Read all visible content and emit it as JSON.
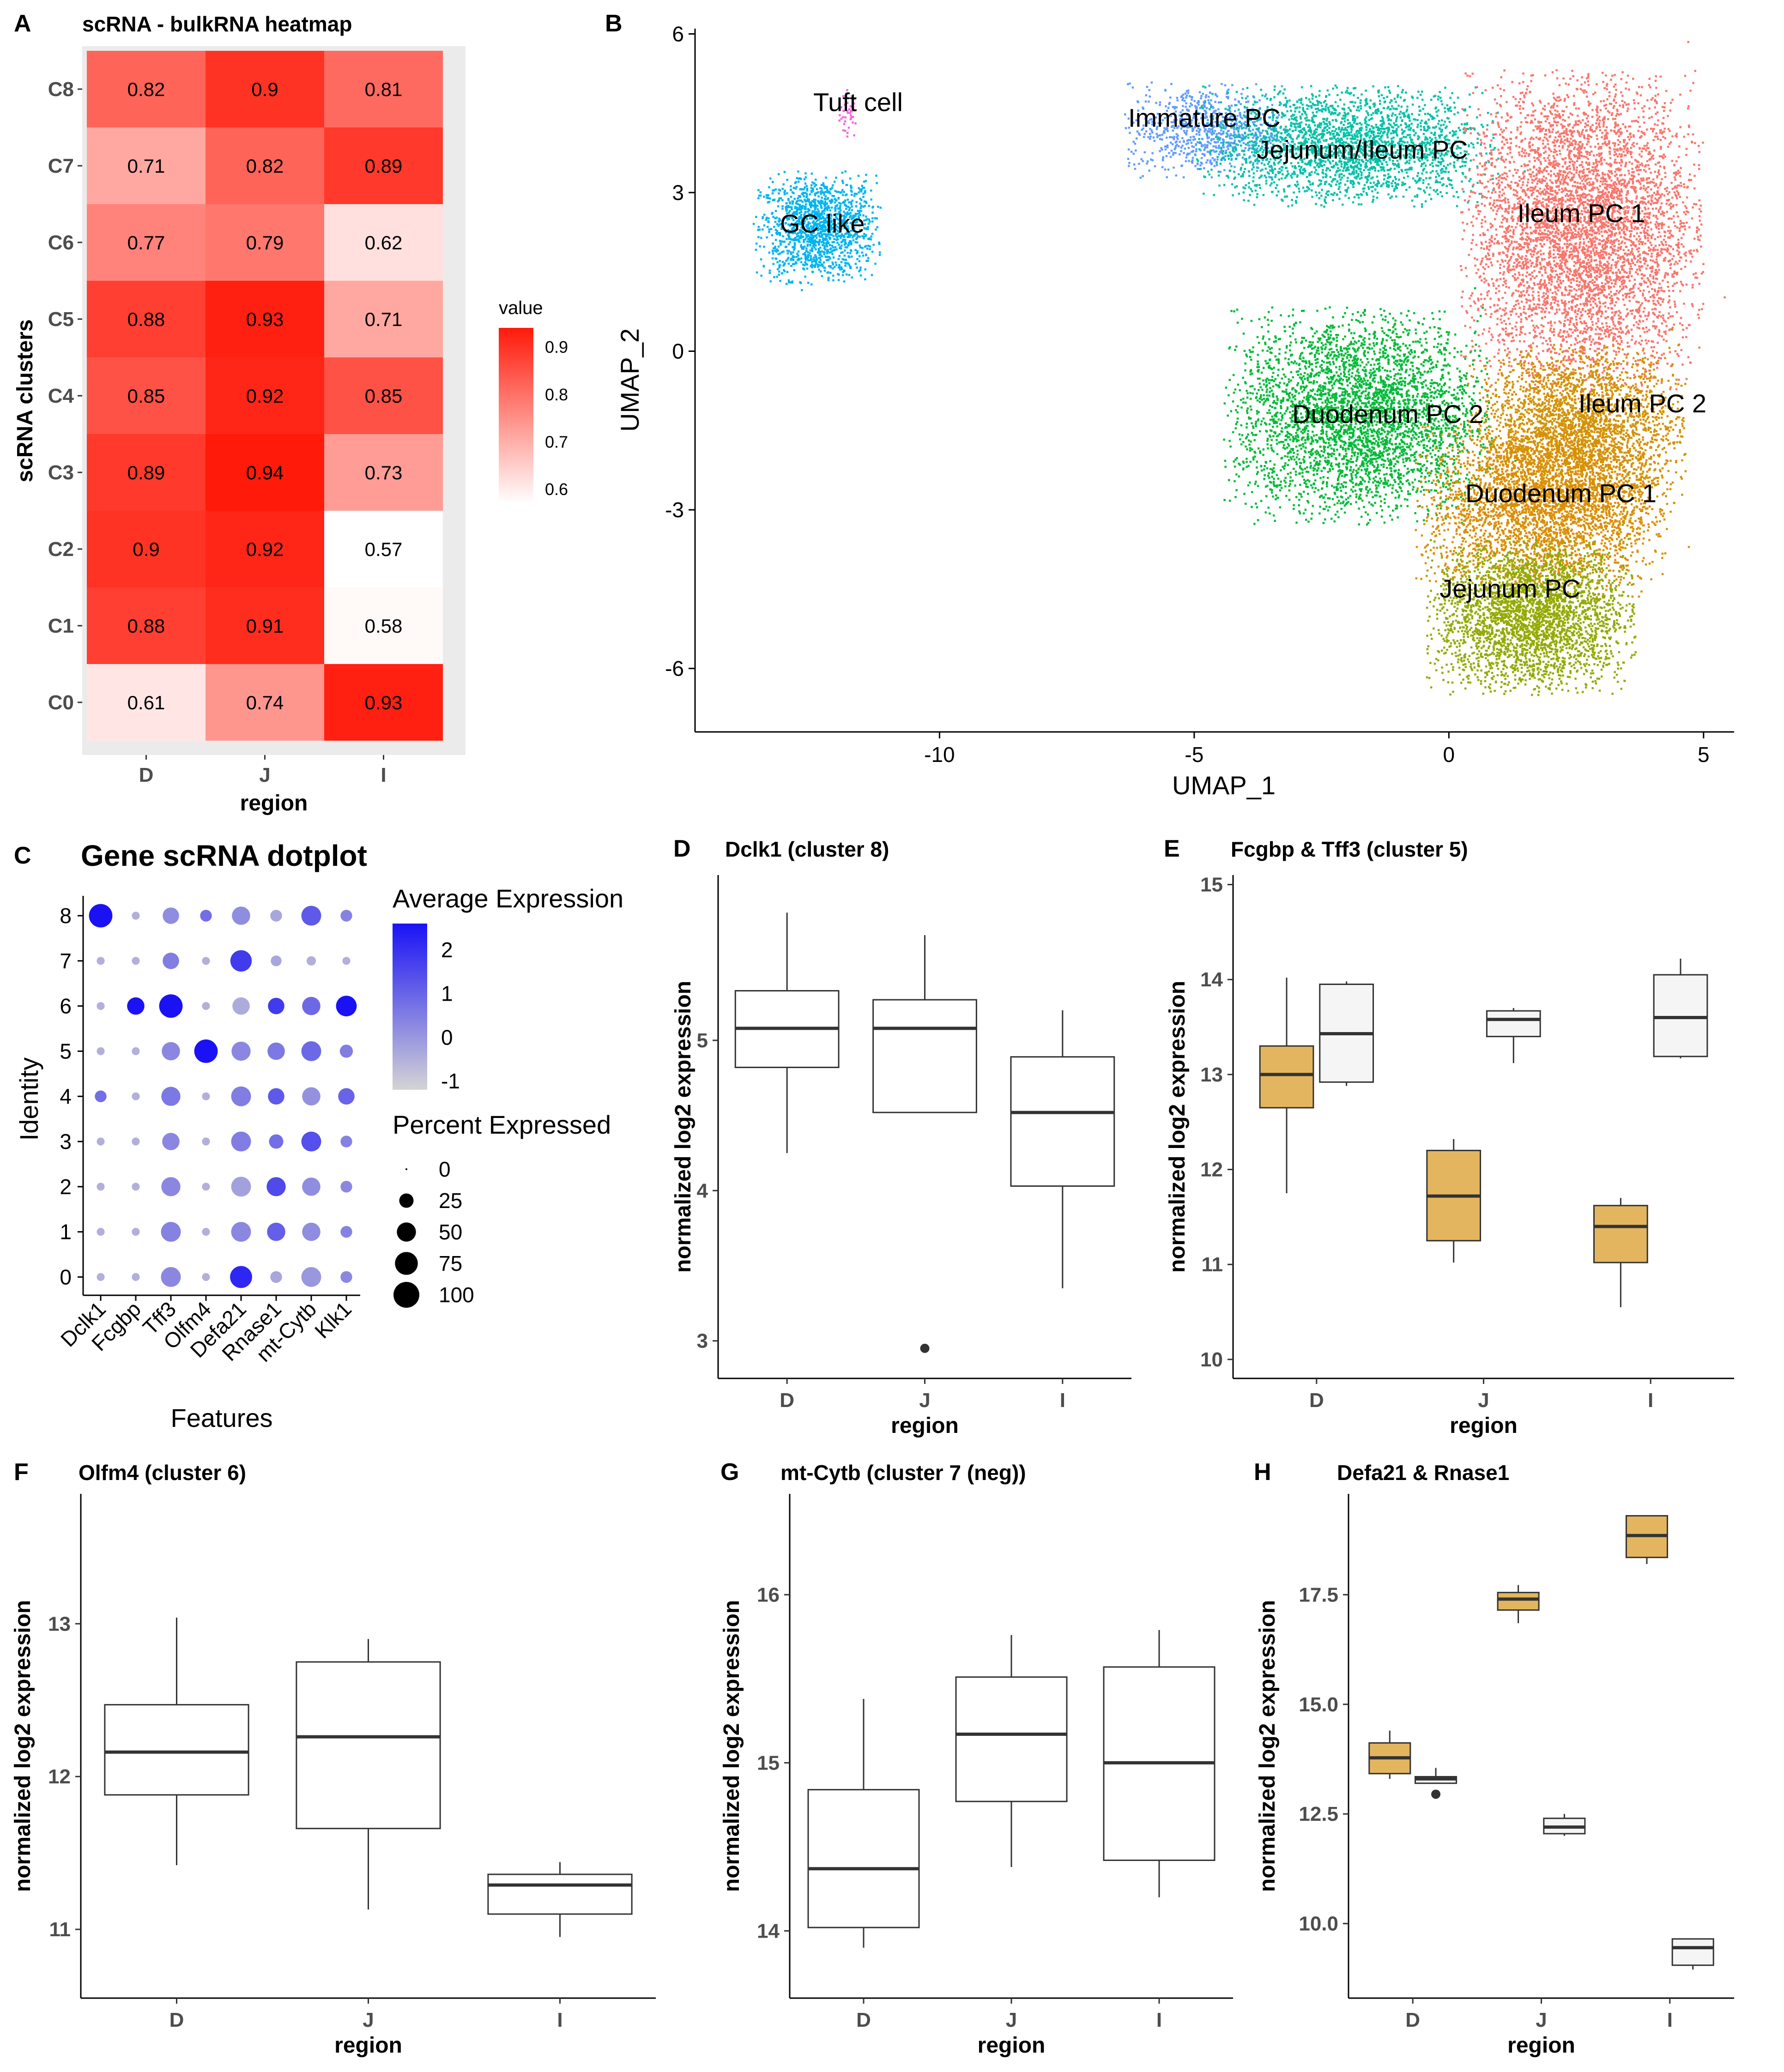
{
  "panels": {
    "A": "A",
    "B": "B",
    "C": "C",
    "D": "D",
    "E": "E",
    "F": "F",
    "G": "G",
    "H": "H"
  },
  "colors": {
    "box_fill_a": "#e3b55e",
    "box_fill_b": "#f5f5f5",
    "heat_low": "#ffffff",
    "heat_high": "#ff1a0a",
    "dot_low": "#d4d4d4",
    "dot_high": "#1a12f5"
  },
  "chart_data": [
    {
      "id": "A",
      "type": "heatmap",
      "title": "scRNA - bulkRNA heatmap",
      "xlabel": "region",
      "ylabel": "scRNA clusters",
      "x": [
        "D",
        "J",
        "I"
      ],
      "y": [
        "C8",
        "C7",
        "C6",
        "C5",
        "C4",
        "C3",
        "C2",
        "C1",
        "C0"
      ],
      "values": [
        [
          0.82,
          0.9,
          0.81
        ],
        [
          0.71,
          0.82,
          0.89
        ],
        [
          0.77,
          0.79,
          0.62
        ],
        [
          0.88,
          0.93,
          0.71
        ],
        [
          0.85,
          0.92,
          0.85
        ],
        [
          0.89,
          0.94,
          0.73
        ],
        [
          0.9,
          0.92,
          0.57
        ],
        [
          0.88,
          0.91,
          0.58
        ],
        [
          0.61,
          0.74,
          0.93
        ]
      ],
      "legend_title": "value",
      "legend_ticks": [
        "0.9",
        "0.8",
        "0.7",
        "0.6"
      ],
      "legend_tick_values": [
        0.9,
        0.8,
        0.7,
        0.6
      ],
      "scale_range": [
        0.57,
        0.94
      ]
    },
    {
      "id": "B",
      "type": "scatter",
      "xlabel": "UMAP_1",
      "ylabel": "UMAP_2",
      "xlim": [
        -14.8,
        5.6
      ],
      "ylim": [
        -7.2,
        6.1
      ],
      "xticks": [
        -10,
        -5,
        0,
        5
      ],
      "xtick_labels": [
        "-10",
        "-5",
        "0",
        "5"
      ],
      "yticks": [
        6,
        3,
        0,
        -3,
        -6
      ],
      "ytick_labels": [
        "6",
        "3",
        "0",
        "-3",
        "-6"
      ],
      "clusters": [
        {
          "name": "Tuft cell",
          "color": "#f564e3",
          "cx": -11.8,
          "cy": 4.5,
          "sx": 0.12,
          "sy": 0.3,
          "n": 40,
          "lx": -11.6,
          "ly": 4.7
        },
        {
          "name": "GC like",
          "color": "#00b4ef",
          "cx": -12.4,
          "cy": 2.35,
          "sx": 0.75,
          "sy": 0.65,
          "n": 1400,
          "lx": -12.3,
          "ly": 2.4
        },
        {
          "name": "Immature PC",
          "color": "#619cff",
          "cx": -4.8,
          "cy": 4.2,
          "sx": 1.0,
          "sy": 0.55,
          "n": 800,
          "lx": -4.8,
          "ly": 4.4
        },
        {
          "name": "Jejunum/Ileum PC",
          "color": "#00c1a9",
          "cx": -2.0,
          "cy": 3.9,
          "sx": 1.8,
          "sy": 0.7,
          "n": 2400,
          "lx": -1.7,
          "ly": 3.8
        },
        {
          "name": "Ileum PC 1",
          "color": "#f8766d",
          "cx": 2.6,
          "cy": 2.3,
          "sx": 1.45,
          "sy": 1.85,
          "n": 5500,
          "lx": 2.6,
          "ly": 2.6
        },
        {
          "name": "Duodenum PC 2",
          "color": "#00ba38",
          "cx": -1.8,
          "cy": -1.2,
          "sx": 1.6,
          "sy": 1.25,
          "n": 3800,
          "lx": -1.2,
          "ly": -1.2
        },
        {
          "name": "Ileum PC 2",
          "color": "#d39200",
          "cx": 2.5,
          "cy": -1.5,
          "sx": 1.3,
          "sy": 1.0,
          "n": 3000,
          "lx": 3.8,
          "ly": -1.0
        },
        {
          "name": "Duodenum PC 1",
          "color": "#db8e00",
          "cx": 1.8,
          "cy": -3.0,
          "sx": 1.5,
          "sy": 1.0,
          "n": 3000,
          "lx": 2.2,
          "ly": -2.7
        },
        {
          "name": "Jejunum PC",
          "color": "#93aa00",
          "cx": 1.6,
          "cy": -5.0,
          "sx": 1.25,
          "sy": 0.9,
          "n": 3000,
          "lx": 1.2,
          "ly": -4.5
        }
      ]
    },
    {
      "id": "C",
      "type": "scatter",
      "title": "Gene scRNA dotplot",
      "xlabel": "Features",
      "ylabel": "Identity",
      "features": [
        "Dclk1",
        "Fcgbp",
        "Tff3",
        "Olfm4",
        "Defa21",
        "Rnase1",
        "mt-Cytb",
        "Klk1"
      ],
      "identities": [
        "8",
        "7",
        "6",
        "5",
        "4",
        "3",
        "2",
        "1",
        "0"
      ],
      "avg_expression": [
        [
          2.6,
          -0.5,
          0.2,
          0.8,
          0.2,
          -0.3,
          1.2,
          0.4
        ],
        [
          -0.5,
          -0.5,
          0.5,
          -0.5,
          1.8,
          -0.3,
          -0.5,
          -0.5
        ],
        [
          -0.5,
          2.6,
          2.6,
          -0.5,
          -0.4,
          1.8,
          0.9,
          2.6
        ],
        [
          -0.5,
          -0.5,
          0.3,
          2.6,
          0.3,
          0.6,
          0.9,
          0.5
        ],
        [
          0.8,
          -0.5,
          0.6,
          -0.5,
          0.5,
          1.2,
          0.1,
          1.0
        ],
        [
          -0.5,
          -0.5,
          0.3,
          -0.5,
          0.5,
          0.8,
          1.4,
          0.4
        ],
        [
          -0.5,
          -0.5,
          0.3,
          -0.5,
          -0.2,
          1.5,
          0.2,
          0.3
        ],
        [
          -0.5,
          -0.5,
          0.4,
          -0.5,
          0.3,
          1.1,
          0.2,
          0.4
        ],
        [
          -0.5,
          -0.5,
          0.3,
          -0.5,
          2.2,
          -0.3,
          0.0,
          0.3
        ]
      ],
      "pct_expressed": [
        [
          80,
          5,
          35,
          15,
          45,
          15,
          55,
          15
        ],
        [
          5,
          5,
          35,
          5,
          65,
          12,
          8,
          5
        ],
        [
          5,
          40,
          80,
          5,
          40,
          35,
          45,
          60
        ],
        [
          5,
          5,
          45,
          80,
          50,
          40,
          55,
          20
        ],
        [
          15,
          5,
          50,
          5,
          55,
          35,
          45,
          35
        ],
        [
          5,
          5,
          40,
          5,
          55,
          25,
          55,
          15
        ],
        [
          5,
          5,
          50,
          5,
          55,
          50,
          45,
          15
        ],
        [
          5,
          5,
          55,
          5,
          55,
          45,
          45,
          15
        ],
        [
          5,
          5,
          55,
          5,
          70,
          15,
          55,
          15
        ]
      ],
      "legend_avg_title": "Average Expression",
      "legend_avg_ticks": [
        "2",
        "1",
        "0",
        "-1"
      ],
      "legend_avg_values": [
        2,
        1,
        0,
        -1
      ],
      "legend_pct_title": "Percent Expressed",
      "legend_pct_labels": [
        "0",
        "25",
        "50",
        "75",
        "100"
      ],
      "legend_pct_values": [
        0,
        25,
        50,
        75,
        100
      ]
    },
    {
      "id": "D",
      "type": "box",
      "title": "Dclk1 (cluster 8)",
      "xlabel": "region",
      "ylabel": "normalized log2 expression",
      "categories": [
        "D",
        "J",
        "I"
      ],
      "ylim": [
        2.75,
        6.1
      ],
      "yticks": [
        3,
        4,
        5
      ],
      "ytick_labels": [
        "3",
        "4",
        "5"
      ],
      "series": [
        {
          "name": "Dclk1",
          "fill": "#ffffff",
          "boxes": [
            {
              "min": 4.25,
              "q1": 4.82,
              "median": 5.08,
              "q3": 5.33,
              "max": 5.85,
              "outliers": []
            },
            {
              "min": 4.52,
              "q1": 4.52,
              "median": 5.08,
              "q3": 5.27,
              "max": 5.7,
              "outliers": [
                2.95
              ]
            },
            {
              "min": 3.35,
              "q1": 4.03,
              "median": 4.52,
              "q3": 4.89,
              "max": 5.2,
              "outliers": []
            }
          ]
        }
      ]
    },
    {
      "id": "E",
      "type": "box",
      "title": "Fcgbp & Tff3 (cluster 5)",
      "xlabel": "region",
      "ylabel": "normalized log2 expression",
      "categories": [
        "D",
        "J",
        "I"
      ],
      "ylim": [
        9.8,
        15.1
      ],
      "yticks": [
        10,
        11,
        12,
        13,
        14,
        15
      ],
      "ytick_labels": [
        "10",
        "11",
        "12",
        "13",
        "14",
        "15"
      ],
      "series": [
        {
          "name": "Fcgbp",
          "fill": "#e3b55e",
          "boxes": [
            {
              "min": 11.75,
              "q1": 12.65,
              "median": 13.0,
              "q3": 13.3,
              "max": 14.02,
              "outliers": []
            },
            {
              "min": 11.02,
              "q1": 11.25,
              "median": 11.72,
              "q3": 12.2,
              "max": 12.32,
              "outliers": []
            },
            {
              "min": 10.55,
              "q1": 11.02,
              "median": 11.4,
              "q3": 11.62,
              "max": 11.7,
              "outliers": []
            }
          ]
        },
        {
          "name": "Tff3",
          "fill": "#f5f5f5",
          "boxes": [
            {
              "min": 12.88,
              "q1": 12.92,
              "median": 13.43,
              "q3": 13.95,
              "max": 13.98,
              "outliers": []
            },
            {
              "min": 13.12,
              "q1": 13.4,
              "median": 13.58,
              "q3": 13.67,
              "max": 13.7,
              "outliers": []
            },
            {
              "min": 13.17,
              "q1": 13.19,
              "median": 13.6,
              "q3": 14.05,
              "max": 14.22,
              "outliers": []
            }
          ]
        }
      ]
    },
    {
      "id": "F",
      "type": "box",
      "title": "Olfm4 (cluster 6)",
      "xlabel": "region",
      "ylabel": "normalized log2 expression",
      "categories": [
        "D",
        "J",
        "I"
      ],
      "ylim": [
        10.55,
        13.85
      ],
      "yticks": [
        11,
        12,
        13
      ],
      "ytick_labels": [
        "11",
        "12",
        "13"
      ],
      "series": [
        {
          "name": "Olfm4",
          "fill": "#ffffff",
          "boxes": [
            {
              "min": 11.42,
              "q1": 11.88,
              "median": 12.16,
              "q3": 12.47,
              "max": 13.04,
              "outliers": []
            },
            {
              "min": 11.13,
              "q1": 11.66,
              "median": 12.26,
              "q3": 12.75,
              "max": 12.9,
              "outliers": []
            },
            {
              "min": 10.95,
              "q1": 11.1,
              "median": 11.29,
              "q3": 11.36,
              "max": 11.44,
              "outliers": []
            }
          ]
        }
      ]
    },
    {
      "id": "G",
      "type": "box",
      "title": "mt-Cytb (cluster 7 (neg))",
      "xlabel": "region",
      "ylabel": "normalized log2 expression",
      "categories": [
        "D",
        "J",
        "I"
      ],
      "ylim": [
        13.6,
        16.6
      ],
      "yticks": [
        14,
        15,
        16
      ],
      "ytick_labels": [
        "14",
        "15",
        "16"
      ],
      "series": [
        {
          "name": "mt-Cytb",
          "fill": "#ffffff",
          "boxes": [
            {
              "min": 13.9,
              "q1": 14.02,
              "median": 14.37,
              "q3": 14.84,
              "max": 15.38,
              "outliers": []
            },
            {
              "min": 14.38,
              "q1": 14.77,
              "median": 15.17,
              "q3": 15.51,
              "max": 15.76,
              "outliers": []
            },
            {
              "min": 14.2,
              "q1": 14.42,
              "median": 15.0,
              "q3": 15.57,
              "max": 15.79,
              "outliers": []
            }
          ]
        }
      ]
    },
    {
      "id": "H",
      "type": "box",
      "title": "Defa21 & Rnase1",
      "xlabel": "region",
      "ylabel": "normalized log2 expression",
      "categories": [
        "D",
        "J",
        "I"
      ],
      "ylim": [
        8.3,
        19.8
      ],
      "yticks": [
        10,
        12.5,
        15,
        17.5
      ],
      "ytick_labels": [
        "10.0",
        "12.5",
        "15.0",
        "17.5"
      ],
      "series": [
        {
          "name": "Defa21",
          "fill": "#e3b55e",
          "boxes": [
            {
              "min": 13.3,
              "q1": 13.42,
              "median": 13.78,
              "q3": 14.12,
              "max": 14.4,
              "outliers": []
            },
            {
              "min": 16.85,
              "q1": 17.15,
              "median": 17.4,
              "q3": 17.55,
              "max": 17.72,
              "outliers": []
            },
            {
              "min": 18.2,
              "q1": 18.35,
              "median": 18.85,
              "q3": 19.3,
              "max": 19.3,
              "outliers": []
            }
          ]
        },
        {
          "name": "Rnase1",
          "fill": "#f5f5f5",
          "boxes": [
            {
              "min": 13.2,
              "q1": 13.2,
              "median": 13.3,
              "q3": 13.35,
              "max": 13.55,
              "outliers": [
                12.95
              ]
            },
            {
              "min": 12.0,
              "q1": 12.05,
              "median": 12.2,
              "q3": 12.4,
              "max": 12.5,
              "outliers": []
            },
            {
              "min": 8.95,
              "q1": 9.05,
              "median": 9.45,
              "q3": 9.65,
              "max": 9.65,
              "outliers": []
            }
          ]
        }
      ]
    }
  ]
}
